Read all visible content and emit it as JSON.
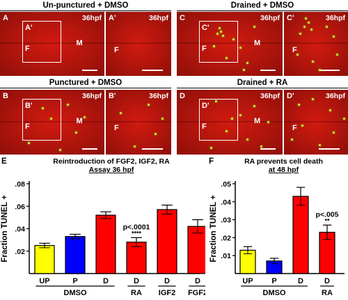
{
  "headers": {
    "top_left": "Un-punctured + DMSO",
    "top_right": "Drained + DMSO",
    "mid_left": "Punctured + DMSO",
    "mid_right": "Drained  + RA"
  },
  "micrographs": [
    {
      "id": "A",
      "label": "A",
      "time": "36hpf",
      "marks": [
        "F",
        "M"
      ],
      "inset_label": "A'",
      "has_inset": true
    },
    {
      "id": "A2",
      "label": "A'",
      "time": "36hpf",
      "marks": [
        "F"
      ],
      "has_inset": false
    },
    {
      "id": "C",
      "label": "C",
      "time": "36hpf",
      "marks": [
        "F",
        "M"
      ],
      "inset_label": "C'",
      "has_inset": true
    },
    {
      "id": "C2",
      "label": "C'",
      "time": "36hpf",
      "marks": [
        "F"
      ],
      "has_inset": false
    },
    {
      "id": "B",
      "label": "B",
      "time": "36hpf",
      "marks": [
        "F",
        "M"
      ],
      "inset_label": "B'",
      "has_inset": true
    },
    {
      "id": "B2",
      "label": "B'",
      "time": "36hpf",
      "marks": [
        "F"
      ],
      "has_inset": false
    },
    {
      "id": "D",
      "label": "D",
      "time": "36hpf",
      "marks": [
        "F",
        "M"
      ],
      "inset_label": "D'",
      "has_inset": true
    },
    {
      "id": "D2",
      "label": "D'",
      "time": "36hpf",
      "marks": [
        "F"
      ],
      "has_inset": false
    }
  ],
  "panel_e": {
    "letter": "E",
    "title_line1": "Reintroduction of FGF2, IGF2, RA",
    "title_line2": "Assay 36 hpf"
  },
  "panel_f": {
    "letter": "F",
    "title_line1": "RA prevents cell death",
    "title_line2": "at 48 hpf"
  },
  "colors": {
    "yellow": "#ffff00",
    "blue": "#0000ff",
    "red": "#ff0000",
    "micrograph_red": "#b5160d",
    "tunel_green": "#b8ff3a"
  },
  "chart_data": [
    {
      "type": "bar",
      "ylabel": "Fraction TUNEL +",
      "ylim": [
        0,
        0.08
      ],
      "yticks": [
        ".02",
        ".04",
        ".06",
        ".08"
      ],
      "ytick_values": [
        0.02,
        0.04,
        0.06,
        0.08
      ],
      "categories": [
        "UP",
        "P",
        "D",
        "D",
        "D",
        "D"
      ],
      "group_labels": [
        {
          "text": "DMSO",
          "span": [
            0,
            2
          ]
        },
        {
          "text": "RA",
          "span": [
            3,
            3
          ]
        },
        {
          "text": "IGF2",
          "span": [
            4,
            4
          ]
        },
        {
          "text": "FGF2",
          "span": [
            5,
            5
          ]
        }
      ],
      "values": [
        0.025,
        0.033,
        0.052,
        0.028,
        0.057,
        0.042
      ],
      "errors": [
        0.002,
        0.002,
        0.003,
        0.004,
        0.004,
        0.006
      ],
      "colors": [
        "#ffff00",
        "#0000ff",
        "#ff0000",
        "#ff0000",
        "#ff0000",
        "#ff0000"
      ],
      "annotations": [
        {
          "bar": 3,
          "text": "p<.0001"
        },
        {
          "bar": 3,
          "text": "****"
        }
      ]
    },
    {
      "type": "bar",
      "ylabel": "Fraction TUNEL +",
      "ylim": [
        0,
        0.05
      ],
      "yticks": [
        ".01",
        ".02",
        ".03",
        ".04",
        ".05"
      ],
      "ytick_values": [
        0.01,
        0.02,
        0.03,
        0.04,
        0.05
      ],
      "categories": [
        "UP",
        "P",
        "D",
        "D"
      ],
      "group_labels": [
        {
          "text": "DMSO",
          "span": [
            0,
            2
          ]
        },
        {
          "text": "RA",
          "span": [
            3,
            3
          ]
        }
      ],
      "values": [
        0.013,
        0.007,
        0.043,
        0.023
      ],
      "errors": [
        0.002,
        0.0015,
        0.005,
        0.004
      ],
      "colors": [
        "#ffff00",
        "#0000ff",
        "#ff0000",
        "#ff0000"
      ],
      "annotations": [
        {
          "bar": 3,
          "text": "p<.005"
        },
        {
          "bar": 3,
          "text": "**"
        }
      ]
    }
  ]
}
